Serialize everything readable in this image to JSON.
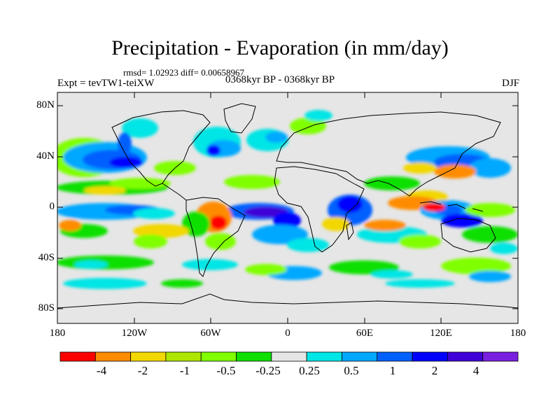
{
  "title": "Precipitation - Evaporation (in mm/day)",
  "stats": "rmsd= 1.02923 diff= 0.00658967",
  "experiment": "Expt = tevTW1-teiXW",
  "period": "0368kyr BP - 0368kyr BP",
  "season": "DJF",
  "lat_labels": [
    "80N",
    "40N",
    "0",
    "40S",
    "80S"
  ],
  "lon_labels": [
    "180",
    "120W",
    "60W",
    "0",
    "60E",
    "120E",
    "180"
  ],
  "colorbar": {
    "colors": [
      "#ff0000",
      "#ff8c00",
      "#f2d700",
      "#aee600",
      "#80ff00",
      "#10e000",
      "#e6e6e6",
      "#00e5e5",
      "#00a8ff",
      "#0060ff",
      "#0000ff",
      "#4000d8",
      "#7a1fe0"
    ],
    "labels": [
      "-4",
      "-2",
      "-1",
      "-0.5",
      "-0.25",
      "0.25",
      "0.5",
      "1",
      "2",
      "4"
    ]
  }
}
